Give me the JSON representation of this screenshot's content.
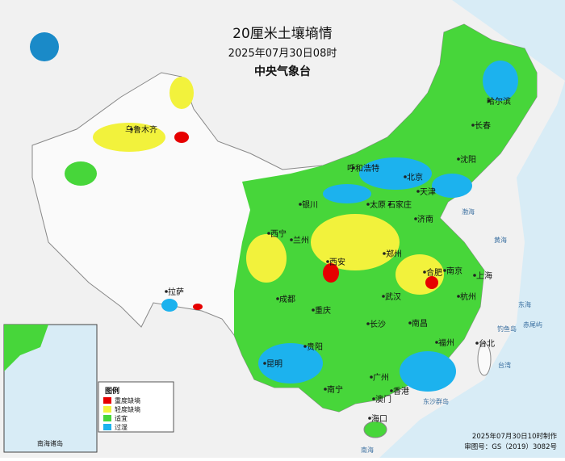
{
  "header": {
    "title": "20厘米土壤墒情",
    "time": "2025年07月30日08时",
    "agency": "中央气象台"
  },
  "legend": {
    "title": "图例",
    "items": [
      {
        "label": "重度缺墒",
        "color": "#e60000"
      },
      {
        "label": "轻度缺墒",
        "color": "#f2f23c"
      },
      {
        "label": "适宜",
        "color": "#47d63a"
      },
      {
        "label": "过湿",
        "color": "#1cb2ee"
      }
    ]
  },
  "cities": [
    "哈尔滨",
    "长春",
    "沈阳",
    "北京",
    "天津",
    "呼和浩特",
    "石家庄",
    "太原",
    "济南",
    "银川",
    "西宁",
    "兰州",
    "西安",
    "郑州",
    "合肥",
    "南京",
    "上海",
    "杭州",
    "武汉",
    "成都",
    "重庆",
    "长沙",
    "南昌",
    "福州",
    "台北",
    "贵阳",
    "昆明",
    "南宁",
    "广州",
    "香港",
    "澳门",
    "海口",
    "拉萨",
    "乌鲁木齐"
  ],
  "seas": [
    "渤海",
    "黄海",
    "东海",
    "南海",
    "台湾",
    "钓鱼岛",
    "赤尾屿",
    "东沙群岛"
  ],
  "inset": {
    "label": "南海诸岛"
  },
  "footer": {
    "made": "2025年07月30日10时制作",
    "approval": "审图号：GS（2019）3082号"
  }
}
